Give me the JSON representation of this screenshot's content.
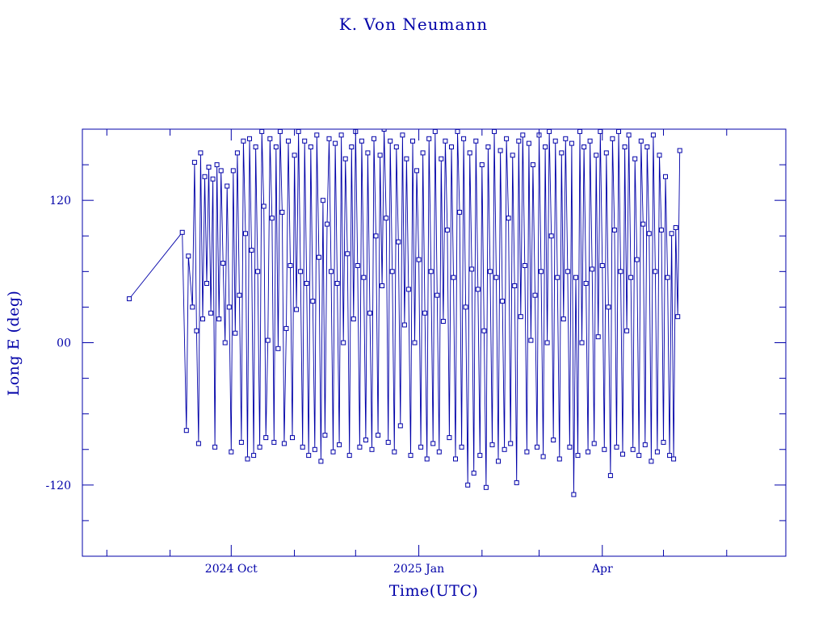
{
  "colors": {
    "ink": "#0000a8",
    "background": "#ffffff"
  },
  "chart_data": {
    "type": "line",
    "title": "K. Von Neumann",
    "xlabel": "Time(UTC)",
    "ylabel": "Long E (deg)",
    "xlim": [
      "2024-07-20",
      "2025-06-30"
    ],
    "ylim": [
      -180,
      180
    ],
    "grid": false,
    "markers": "square",
    "x_ticks": [
      {
        "date": "2024-10-01",
        "label": "2024 Oct"
      },
      {
        "date": "2025-01-01",
        "label": "2025 Jan"
      },
      {
        "date": "2025-04-01",
        "label": "Apr"
      }
    ],
    "y_ticks": [
      {
        "value": 120,
        "label": "120"
      },
      {
        "value": 0,
        "label": "00"
      },
      {
        "value": -120,
        "label": "-120"
      }
    ],
    "series": [
      {
        "points": [
          [
            "2024-08-12",
            37
          ],
          [
            "2024-09-07",
            93
          ],
          [
            "2024-09-09",
            -74
          ],
          [
            "2024-09-10",
            73
          ],
          [
            "2024-09-12",
            30
          ],
          [
            "2024-09-13",
            152
          ],
          [
            "2024-09-14",
            10
          ],
          [
            "2024-09-15",
            -85
          ],
          [
            "2024-09-16",
            160
          ],
          [
            "2024-09-17",
            20
          ],
          [
            "2024-09-18",
            140
          ],
          [
            "2024-09-19",
            50
          ],
          [
            "2024-09-20",
            148
          ],
          [
            "2024-09-21",
            25
          ],
          [
            "2024-09-22",
            138
          ],
          [
            "2024-09-23",
            -88
          ],
          [
            "2024-09-24",
            150
          ],
          [
            "2024-09-25",
            20
          ],
          [
            "2024-09-26",
            145
          ],
          [
            "2024-09-27",
            67
          ],
          [
            "2024-09-28",
            0
          ],
          [
            "2024-09-29",
            132
          ],
          [
            "2024-09-30",
            30
          ],
          [
            "2024-10-01",
            -92
          ],
          [
            "2024-10-02",
            145
          ],
          [
            "2024-10-03",
            8
          ],
          [
            "2024-10-04",
            160
          ],
          [
            "2024-10-05",
            40
          ],
          [
            "2024-10-06",
            -84
          ],
          [
            "2024-10-07",
            170
          ],
          [
            "2024-10-08",
            92
          ],
          [
            "2024-10-09",
            -98
          ],
          [
            "2024-10-10",
            172
          ],
          [
            "2024-10-11",
            78
          ],
          [
            "2024-10-12",
            -95
          ],
          [
            "2024-10-13",
            165
          ],
          [
            "2024-10-14",
            60
          ],
          [
            "2024-10-15",
            -88
          ],
          [
            "2024-10-16",
            178
          ],
          [
            "2024-10-17",
            115
          ],
          [
            "2024-10-18",
            -80
          ],
          [
            "2024-10-19",
            2
          ],
          [
            "2024-10-20",
            172
          ],
          [
            "2024-10-21",
            105
          ],
          [
            "2024-10-22",
            -84
          ],
          [
            "2024-10-23",
            165
          ],
          [
            "2024-10-24",
            -5
          ],
          [
            "2024-10-25",
            178
          ],
          [
            "2024-10-26",
            110
          ],
          [
            "2024-10-27",
            -85
          ],
          [
            "2024-10-28",
            12
          ],
          [
            "2024-10-29",
            170
          ],
          [
            "2024-10-30",
            65
          ],
          [
            "2024-10-31",
            -80
          ],
          [
            "2024-11-01",
            158
          ],
          [
            "2024-11-02",
            28
          ],
          [
            "2024-11-03",
            178
          ],
          [
            "2024-11-04",
            60
          ],
          [
            "2024-11-05",
            -88
          ],
          [
            "2024-11-06",
            170
          ],
          [
            "2024-11-07",
            50
          ],
          [
            "2024-11-08",
            -95
          ],
          [
            "2024-11-09",
            165
          ],
          [
            "2024-11-10",
            35
          ],
          [
            "2024-11-11",
            -90
          ],
          [
            "2024-11-12",
            175
          ],
          [
            "2024-11-13",
            72
          ],
          [
            "2024-11-14",
            -100
          ],
          [
            "2024-11-15",
            120
          ],
          [
            "2024-11-16",
            -78
          ],
          [
            "2024-11-17",
            100
          ],
          [
            "2024-11-18",
            172
          ],
          [
            "2024-11-19",
            60
          ],
          [
            "2024-11-20",
            -92
          ],
          [
            "2024-11-21",
            168
          ],
          [
            "2024-11-22",
            50
          ],
          [
            "2024-11-23",
            -86
          ],
          [
            "2024-11-24",
            175
          ],
          [
            "2024-11-25",
            0
          ],
          [
            "2024-11-26",
            155
          ],
          [
            "2024-11-27",
            75
          ],
          [
            "2024-11-28",
            -95
          ],
          [
            "2024-11-29",
            165
          ],
          [
            "2024-11-30",
            20
          ],
          [
            "2024-12-01",
            178
          ],
          [
            "2024-12-02",
            65
          ],
          [
            "2024-12-03",
            -88
          ],
          [
            "2024-12-04",
            170
          ],
          [
            "2024-12-05",
            55
          ],
          [
            "2024-12-06",
            -82
          ],
          [
            "2024-12-07",
            160
          ],
          [
            "2024-12-08",
            25
          ],
          [
            "2024-12-09",
            -90
          ],
          [
            "2024-12-10",
            172
          ],
          [
            "2024-12-11",
            90
          ],
          [
            "2024-12-12",
            -78
          ],
          [
            "2024-12-13",
            158
          ],
          [
            "2024-12-14",
            48
          ],
          [
            "2024-12-15",
            180
          ],
          [
            "2024-12-16",
            105
          ],
          [
            "2024-12-17",
            -84
          ],
          [
            "2024-12-18",
            170
          ],
          [
            "2024-12-19",
            60
          ],
          [
            "2024-12-20",
            -92
          ],
          [
            "2024-12-21",
            165
          ],
          [
            "2024-12-22",
            85
          ],
          [
            "2024-12-23",
            -70
          ],
          [
            "2024-12-24",
            175
          ],
          [
            "2024-12-25",
            15
          ],
          [
            "2024-12-26",
            155
          ],
          [
            "2024-12-27",
            45
          ],
          [
            "2024-12-28",
            -95
          ],
          [
            "2024-12-29",
            170
          ],
          [
            "2024-12-30",
            0
          ],
          [
            "2024-12-31",
            145
          ],
          [
            "2025-01-01",
            70
          ],
          [
            "2025-01-02",
            -88
          ],
          [
            "2025-01-03",
            160
          ],
          [
            "2025-01-04",
            25
          ],
          [
            "2025-01-05",
            -98
          ],
          [
            "2025-01-06",
            172
          ],
          [
            "2025-01-07",
            60
          ],
          [
            "2025-01-08",
            -85
          ],
          [
            "2025-01-09",
            178
          ],
          [
            "2025-01-10",
            40
          ],
          [
            "2025-01-11",
            -92
          ],
          [
            "2025-01-12",
            155
          ],
          [
            "2025-01-13",
            18
          ],
          [
            "2025-01-14",
            170
          ],
          [
            "2025-01-15",
            95
          ],
          [
            "2025-01-16",
            -80
          ],
          [
            "2025-01-17",
            165
          ],
          [
            "2025-01-18",
            55
          ],
          [
            "2025-01-19",
            -98
          ],
          [
            "2025-01-20",
            178
          ],
          [
            "2025-01-21",
            110
          ],
          [
            "2025-01-22",
            -88
          ],
          [
            "2025-01-23",
            172
          ],
          [
            "2025-01-24",
            30
          ],
          [
            "2025-01-25",
            -120
          ],
          [
            "2025-01-26",
            160
          ],
          [
            "2025-01-27",
            62
          ],
          [
            "2025-01-28",
            -110
          ],
          [
            "2025-01-29",
            170
          ],
          [
            "2025-01-30",
            45
          ],
          [
            "2025-01-31",
            -95
          ],
          [
            "2025-02-01",
            150
          ],
          [
            "2025-02-02",
            10
          ],
          [
            "2025-02-03",
            -122
          ],
          [
            "2025-02-04",
            165
          ],
          [
            "2025-02-05",
            60
          ],
          [
            "2025-02-06",
            -86
          ],
          [
            "2025-02-07",
            178
          ],
          [
            "2025-02-08",
            55
          ],
          [
            "2025-02-09",
            -100
          ],
          [
            "2025-02-10",
            162
          ],
          [
            "2025-02-11",
            35
          ],
          [
            "2025-02-12",
            -90
          ],
          [
            "2025-02-13",
            172
          ],
          [
            "2025-02-14",
            105
          ],
          [
            "2025-02-15",
            -85
          ],
          [
            "2025-02-16",
            158
          ],
          [
            "2025-02-17",
            48
          ],
          [
            "2025-02-18",
            -118
          ],
          [
            "2025-02-19",
            170
          ],
          [
            "2025-02-20",
            22
          ],
          [
            "2025-02-21",
            175
          ],
          [
            "2025-02-22",
            65
          ],
          [
            "2025-02-23",
            -92
          ],
          [
            "2025-02-24",
            168
          ],
          [
            "2025-02-25",
            2
          ],
          [
            "2025-02-26",
            150
          ],
          [
            "2025-02-27",
            40
          ],
          [
            "2025-02-28",
            -88
          ],
          [
            "2025-03-01",
            175
          ],
          [
            "2025-03-02",
            60
          ],
          [
            "2025-03-03",
            -96
          ],
          [
            "2025-03-04",
            165
          ],
          [
            "2025-03-05",
            0
          ],
          [
            "2025-03-06",
            178
          ],
          [
            "2025-03-07",
            90
          ],
          [
            "2025-03-08",
            -82
          ],
          [
            "2025-03-09",
            170
          ],
          [
            "2025-03-10",
            55
          ],
          [
            "2025-03-11",
            -98
          ],
          [
            "2025-03-12",
            160
          ],
          [
            "2025-03-13",
            20
          ],
          [
            "2025-03-14",
            172
          ],
          [
            "2025-03-15",
            60
          ],
          [
            "2025-03-16",
            -88
          ],
          [
            "2025-03-17",
            168
          ],
          [
            "2025-03-18",
            -128
          ],
          [
            "2025-03-19",
            55
          ],
          [
            "2025-03-20",
            -95
          ],
          [
            "2025-03-21",
            178
          ],
          [
            "2025-03-22",
            0
          ],
          [
            "2025-03-23",
            165
          ],
          [
            "2025-03-24",
            50
          ],
          [
            "2025-03-25",
            -92
          ],
          [
            "2025-03-26",
            170
          ],
          [
            "2025-03-27",
            62
          ],
          [
            "2025-03-28",
            -85
          ],
          [
            "2025-03-29",
            158
          ],
          [
            "2025-03-30",
            5
          ],
          [
            "2025-03-31",
            178
          ],
          [
            "2025-04-01",
            65
          ],
          [
            "2025-04-02",
            -90
          ],
          [
            "2025-04-03",
            160
          ],
          [
            "2025-04-04",
            30
          ],
          [
            "2025-04-05",
            -112
          ],
          [
            "2025-04-06",
            172
          ],
          [
            "2025-04-07",
            95
          ],
          [
            "2025-04-08",
            -88
          ],
          [
            "2025-04-09",
            178
          ],
          [
            "2025-04-10",
            60
          ],
          [
            "2025-04-11",
            -94
          ],
          [
            "2025-04-12",
            165
          ],
          [
            "2025-04-13",
            10
          ],
          [
            "2025-04-14",
            175
          ],
          [
            "2025-04-15",
            55
          ],
          [
            "2025-04-16",
            -90
          ],
          [
            "2025-04-17",
            155
          ],
          [
            "2025-04-18",
            70
          ],
          [
            "2025-04-19",
            -95
          ],
          [
            "2025-04-20",
            170
          ],
          [
            "2025-04-21",
            100
          ],
          [
            "2025-04-22",
            -86
          ],
          [
            "2025-04-23",
            165
          ],
          [
            "2025-04-24",
            92
          ],
          [
            "2025-04-25",
            -100
          ],
          [
            "2025-04-26",
            175
          ],
          [
            "2025-04-27",
            60
          ],
          [
            "2025-04-28",
            -92
          ],
          [
            "2025-04-29",
            158
          ],
          [
            "2025-04-30",
            95
          ],
          [
            "2025-05-01",
            -84
          ],
          [
            "2025-05-02",
            140
          ],
          [
            "2025-05-03",
            55
          ],
          [
            "2025-05-04",
            -95
          ],
          [
            "2025-05-05",
            92
          ],
          [
            "2025-05-06",
            -98
          ],
          [
            "2025-05-07",
            97
          ],
          [
            "2025-05-08",
            22
          ],
          [
            "2025-05-09",
            162
          ]
        ]
      }
    ]
  }
}
